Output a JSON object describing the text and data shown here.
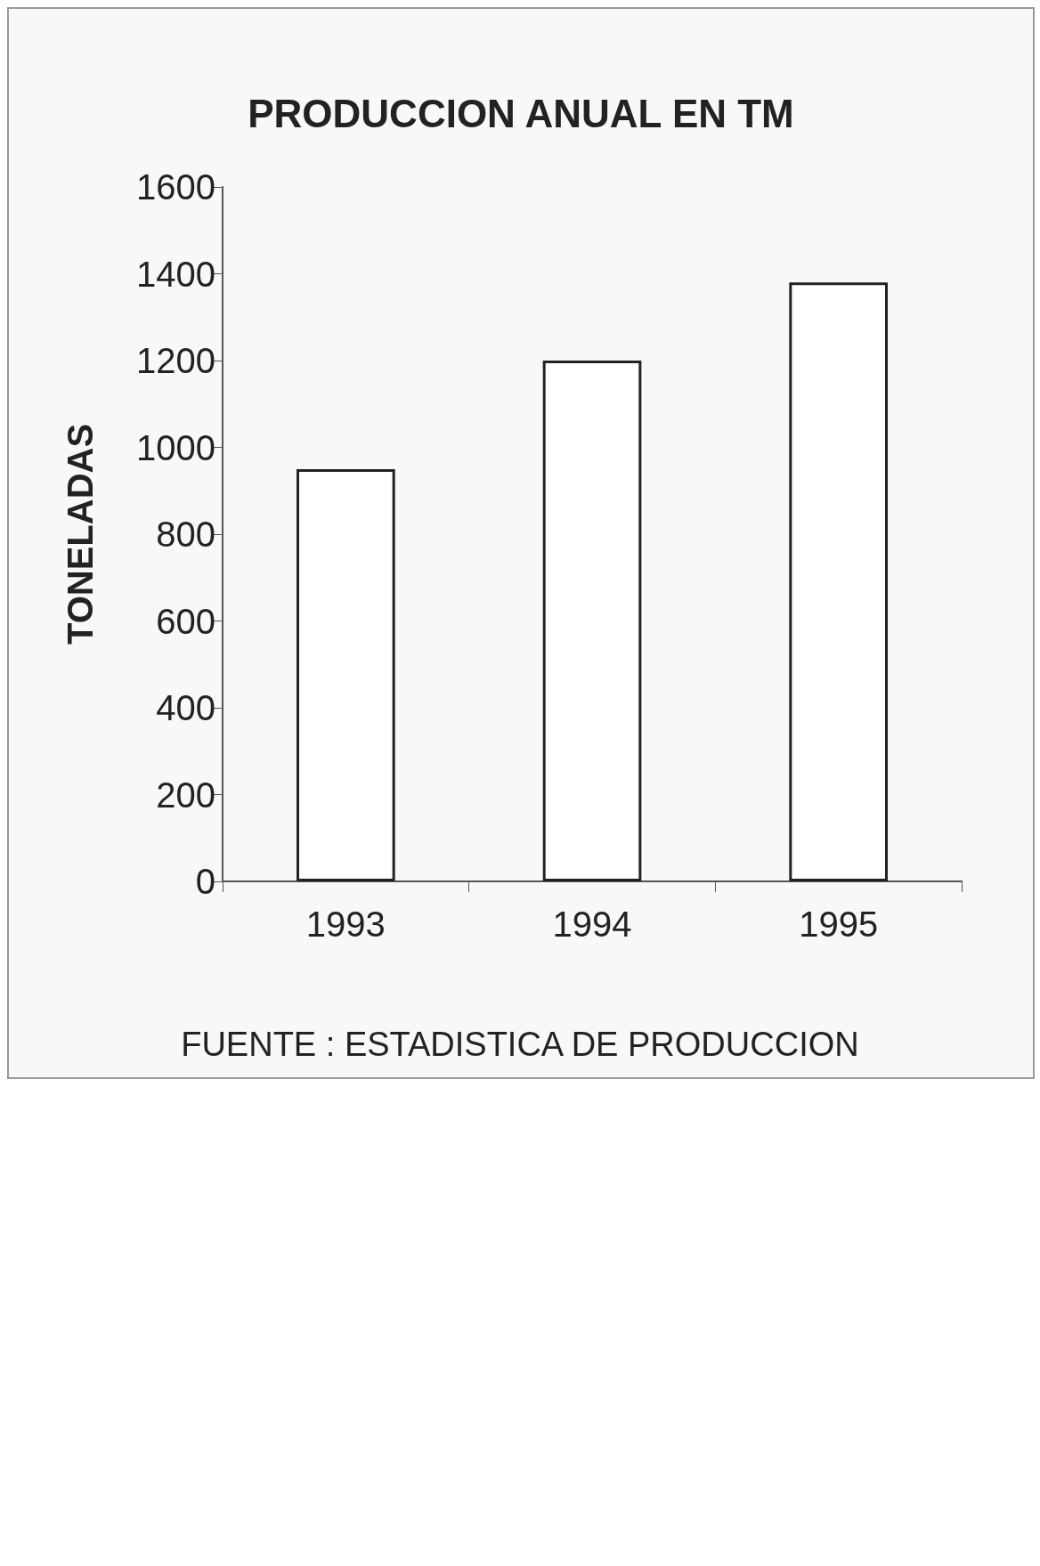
{
  "chart_data": {
    "type": "bar",
    "title": "PRODUCCION ANUAL EN TM",
    "ylabel": "TONELADAS",
    "categories": [
      "1993",
      "1994",
      "1995"
    ],
    "values": [
      950,
      1200,
      1380
    ],
    "color": "#ffffff",
    "ylim": [
      0,
      1600
    ],
    "yticks": [
      0,
      200,
      400,
      600,
      800,
      1000,
      1200,
      1400,
      1600
    ],
    "grid": false,
    "annotations": [
      "FUENTE : ESTADISTICA DE PRODUCCION"
    ]
  }
}
